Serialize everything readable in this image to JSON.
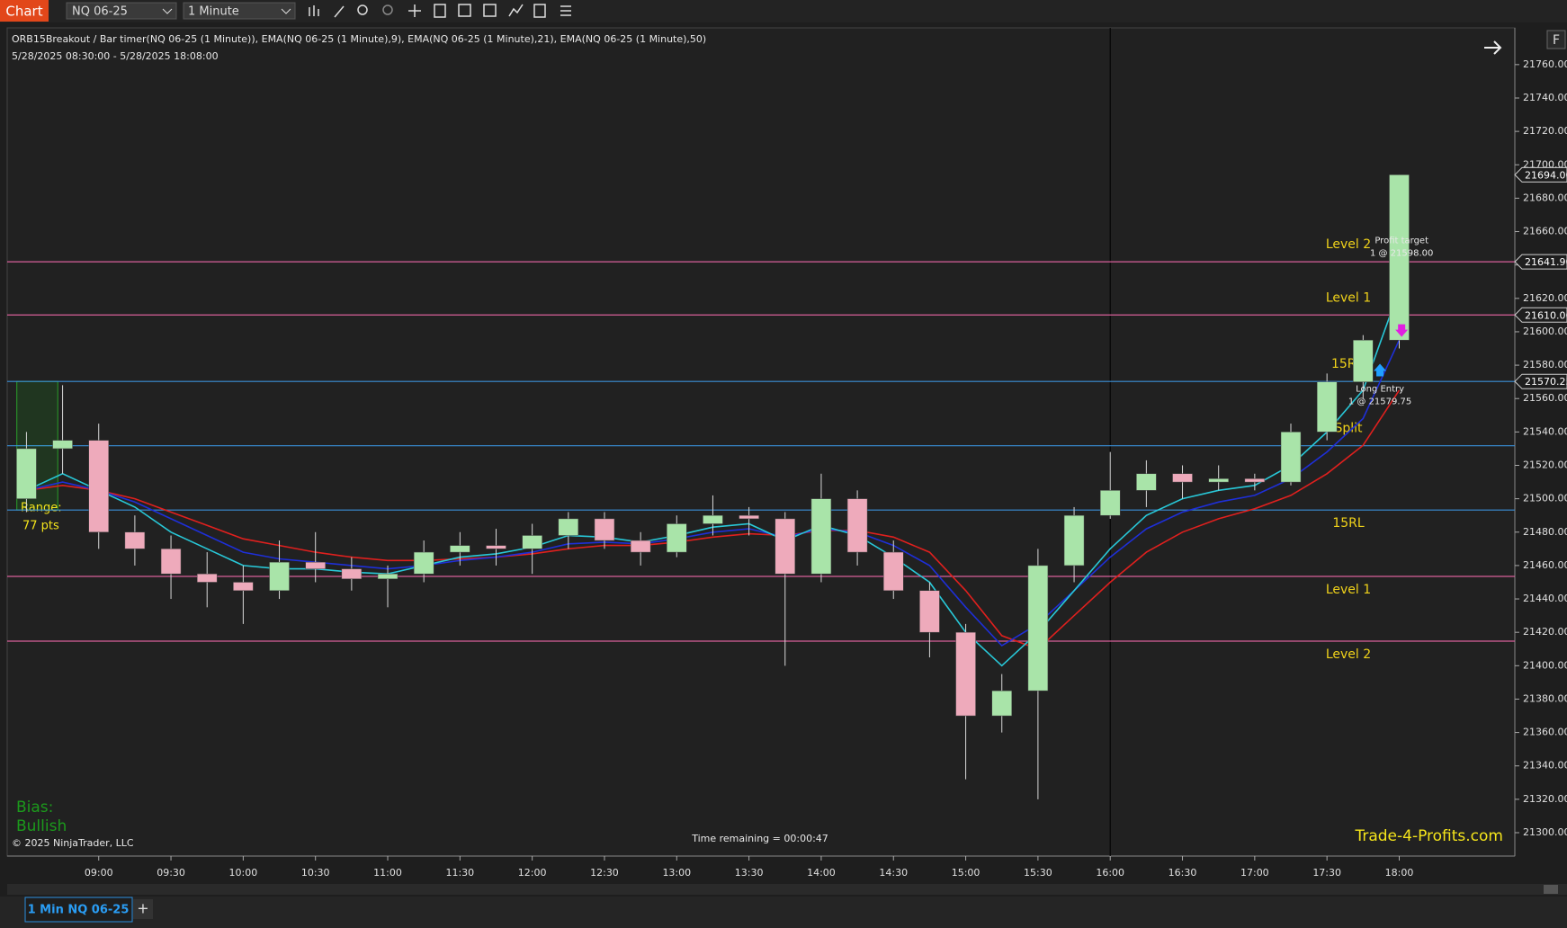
{
  "toolbar": {
    "button": "Chart",
    "instrument": "NQ 06-25",
    "interval": "1 Minute",
    "corner": "F"
  },
  "chart_data": {
    "type": "candlestick",
    "title": "ORB15Breakout / Bar timer(NQ 06-25 (1 Minute)), EMA(NQ 06-25 (1 Minute),9), EMA(NQ 06-25 (1 Minute),21), EMA(NQ 06-25 (1 Minute),50)",
    "subtitle": "5/28/2025 08:30:00 - 5/28/2025 18:08:00",
    "x": [
      "08:30",
      "08:45",
      "09:00",
      "09:15",
      "09:30",
      "09:45",
      "10:00",
      "10:15",
      "10:30",
      "10:45",
      "11:00",
      "11:15",
      "11:30",
      "11:45",
      "12:00",
      "12:15",
      "12:30",
      "12:45",
      "13:00",
      "13:15",
      "13:30",
      "13:45",
      "14:00",
      "14:15",
      "14:30",
      "14:45",
      "15:00",
      "15:15",
      "15:30",
      "15:45",
      "16:00",
      "16:15",
      "16:30",
      "16:45",
      "17:00",
      "17:15",
      "17:30",
      "17:45",
      "18:00"
    ],
    "open": [
      21500,
      21530,
      21535,
      21480,
      21470,
      21455,
      21450,
      21445,
      21462,
      21458,
      21452,
      21455,
      21468,
      21472,
      21470,
      21478,
      21488,
      21475,
      21468,
      21485,
      21490,
      21488,
      21455,
      21500,
      21468,
      21445,
      21420,
      21370,
      21385,
      21460,
      21490,
      21505,
      21515,
      21510,
      21512,
      21510,
      21540,
      21570,
      21595
    ],
    "high": [
      21540,
      21568,
      21545,
      21490,
      21478,
      21468,
      21460,
      21475,
      21480,
      21465,
      21460,
      21475,
      21480,
      21482,
      21485,
      21492,
      21492,
      21480,
      21490,
      21502,
      21495,
      21492,
      21515,
      21505,
      21475,
      21450,
      21425,
      21395,
      21470,
      21495,
      21528,
      21523,
      21520,
      21520,
      21515,
      21545,
      21575,
      21598,
      21694
    ],
    "low": [
      21492,
      21515,
      21470,
      21460,
      21440,
      21435,
      21425,
      21440,
      21450,
      21445,
      21435,
      21450,
      21460,
      21460,
      21455,
      21470,
      21470,
      21460,
      21465,
      21478,
      21478,
      21400,
      21450,
      21460,
      21440,
      21405,
      21332,
      21360,
      21320,
      21450,
      21488,
      21495,
      21500,
      21505,
      21505,
      21508,
      21535,
      21560,
      21590
    ],
    "close": [
      21530,
      21535,
      21480,
      21470,
      21455,
      21450,
      21445,
      21462,
      21458,
      21452,
      21455,
      21468,
      21472,
      21470,
      21478,
      21488,
      21475,
      21468,
      21485,
      21490,
      21488,
      21455,
      21500,
      21468,
      21445,
      21420,
      21370,
      21385,
      21460,
      21490,
      21505,
      21515,
      21510,
      21512,
      21510,
      21540,
      21570,
      21595,
      21694
    ],
    "up_color": "#a9e4a9",
    "down_color": "#eeaabb",
    "wick_color": "#d8d8d8",
    "series": [
      {
        "color": "#e0201e",
        "values": [
          21505,
          21508,
          21505,
          21500,
          21492,
          21484,
          21476,
          21472,
          21468,
          21465,
          21463,
          21463,
          21464,
          21465,
          21467,
          21470,
          21472,
          21472,
          21474,
          21477,
          21479,
          21478,
          21481,
          21481,
          21477,
          21468,
          21445,
          21418,
          21410,
          21430,
          21450,
          21468,
          21480,
          21488,
          21494,
          21502,
          21515,
          21532,
          21565
        ]
      },
      {
        "color": "#1e2fd8",
        "values": [
          21505,
          21510,
          21505,
          21498,
          21488,
          21478,
          21468,
          21464,
          21462,
          21460,
          21458,
          21460,
          21463,
          21465,
          21468,
          21473,
          21474,
          21473,
          21476,
          21480,
          21482,
          21477,
          21482,
          21480,
          21472,
          21460,
          21435,
          21412,
          21425,
          21445,
          21465,
          21482,
          21492,
          21498,
          21502,
          21512,
          21528,
          21548,
          21595
        ]
      },
      {
        "color": "#28c8d8",
        "values": [
          21505,
          21515,
          21505,
          21495,
          21480,
          21470,
          21460,
          21458,
          21458,
          21456,
          21455,
          21460,
          21465,
          21467,
          21471,
          21478,
          21477,
          21474,
          21478,
          21483,
          21485,
          21475,
          21484,
          21478,
          21465,
          21450,
          21420,
          21400,
          21420,
          21445,
          21470,
          21490,
          21500,
          21505,
          21508,
          21520,
          21540,
          21565,
          21625
        ]
      }
    ],
    "xlim": [
      "08:22",
      "18:48"
    ],
    "xticks": [
      "09:00",
      "09:30",
      "10:00",
      "10:30",
      "11:00",
      "11:30",
      "12:00",
      "12:30",
      "13:00",
      "13:30",
      "14:00",
      "14:30",
      "15:00",
      "15:30",
      "16:00",
      "16:30",
      "17:00",
      "17:30",
      "18:00"
    ],
    "ylim": [
      21286,
      21782
    ],
    "yticks": [
      {
        "value": 21300,
        "label": "21300.00"
      },
      {
        "value": 21320,
        "label": "21320.00"
      },
      {
        "value": 21340,
        "label": "21340.00"
      },
      {
        "value": 21360,
        "label": "21360.00"
      },
      {
        "value": 21380,
        "label": "21380.00"
      },
      {
        "value": 21400,
        "label": "21400.00"
      },
      {
        "value": 21420,
        "label": "21420.00"
      },
      {
        "value": 21440,
        "label": "21440.00"
      },
      {
        "value": 21460,
        "label": "21460.00"
      },
      {
        "value": 21480,
        "label": "21480.00"
      },
      {
        "value": 21500,
        "label": "21500.00"
      },
      {
        "value": 21520,
        "label": "21520.00"
      },
      {
        "value": 21540,
        "label": "21540.00"
      },
      {
        "value": 21560,
        "label": "21560.00"
      },
      {
        "value": 21580,
        "label": "21580.00"
      },
      {
        "value": 21600,
        "label": "21600.00"
      },
      {
        "value": 21620,
        "label": "21620.00"
      },
      {
        "value": 21640,
        "label": "21640.00"
      },
      {
        "value": 21660,
        "label": "21660.00"
      },
      {
        "value": 21680,
        "label": "21680.00"
      },
      {
        "value": 21700,
        "label": "21700.00"
      },
      {
        "value": 21720,
        "label": "21720.00"
      },
      {
        "value": 21740,
        "label": "21740.00"
      },
      {
        "value": 21760,
        "label": "21760.00"
      }
    ],
    "session_break": "16:00",
    "levels": [
      {
        "label": "Level 2",
        "value": 21641.9,
        "color": "#d85f9a",
        "label_side": "above"
      },
      {
        "label": "Level 1",
        "value": 21610.06,
        "color": "#d85f9a",
        "label_side": "above"
      },
      {
        "label": "15RH",
        "value": 21570.25,
        "color": "#3a8fd8",
        "label_side": "above"
      },
      {
        "label": "Split",
        "value": 21531.75,
        "color": "#3a8fd8",
        "label_side": "above"
      },
      {
        "label": "15RL",
        "value": 21493.25,
        "color": "#3a8fd8",
        "label_side": "below"
      },
      {
        "label": "Level 1",
        "value": 21453.5,
        "color": "#d85f9a",
        "label_side": "below"
      },
      {
        "label": "Level 2",
        "value": 21414.7,
        "color": "#d85f9a",
        "label_side": "below"
      }
    ],
    "price_markers": [
      {
        "value": 21694,
        "label": "21694.00"
      },
      {
        "value": 21641.9,
        "label": "21641.90"
      },
      21610.06,
      21570.25
    ],
    "range_box": {
      "start": "08:26",
      "end": "08:43",
      "high": 21570.25,
      "low": 21493.25,
      "label": "Range:",
      "sublabel": "77 pts"
    },
    "trades": [
      {
        "kind": "exit",
        "time": "18:01",
        "price": 21598,
        "text": "Profit target",
        "detail": "1 @ 21598.00",
        "color": "#e020e0"
      },
      {
        "kind": "entry",
        "time": "17:52",
        "price": 21579.75,
        "text": "Long Entry",
        "detail": "1 @ 21579.75",
        "color": "#20a0ff"
      }
    ]
  },
  "overlay": {
    "bias_label": "Bias:",
    "bias": "Bullish",
    "copyright": "© 2025 NinjaTrader, LLC",
    "timer": "Time remaining = 00:00:47",
    "brand": "Trade-4-Profits.com"
  },
  "tabs": {
    "active": "1 Min NQ 06-25",
    "add": "+"
  }
}
